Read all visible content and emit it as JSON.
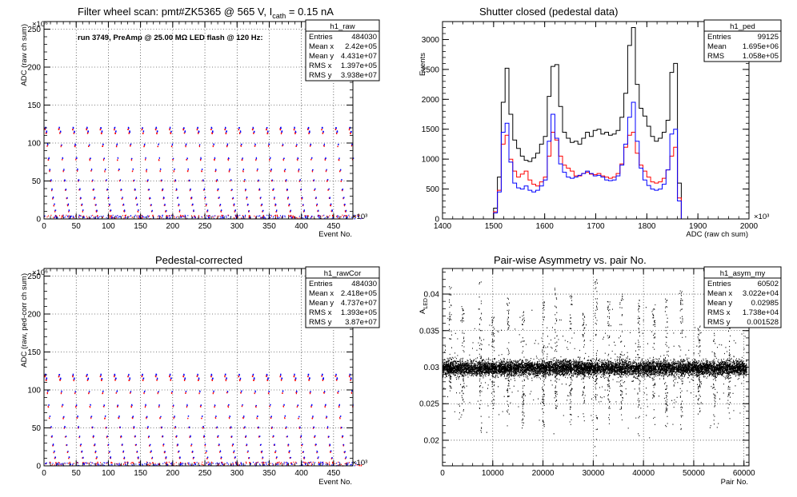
{
  "chart_data": [
    {
      "type": "scatter",
      "id": "raw",
      "title": "Filter wheel scan: pmt#ZK5365 @   565 V, I",
      "title_sub": "cath",
      "title_tail": " = 0.15 nA",
      "annotation": "run 3749, PreAmp @ 25.00 MΩ LED flash @  120 Hz:",
      "xlabel": "Event No.",
      "ylabel": "ADC (raw ch sum)",
      "xlim": [
        0,
        480
      ],
      "ylim": [
        0,
        260
      ],
      "x_multiplier": "×10³",
      "y_multiplier": "×10⁶",
      "x_ticks": [
        0,
        50,
        100,
        150,
        200,
        250,
        300,
        350,
        400,
        450
      ],
      "y_ticks": [
        0,
        50,
        100,
        150,
        200,
        250
      ],
      "grid": true,
      "stats_box": {
        "name": "h1_raw",
        "rows": [
          [
            "Entries",
            "484030"
          ],
          [
            "Mean x",
            "2.42e+05"
          ],
          [
            "Mean y",
            "4.431e+07"
          ],
          [
            "RMS x",
            "1.397e+05"
          ],
          [
            "RMS y",
            "3.938e+07"
          ]
        ]
      },
      "series": [
        {
          "color": "#ff0000",
          "levels": [
            118,
            113,
            96,
            78,
            63,
            50,
            38,
            27,
            18,
            10,
            4
          ]
        },
        {
          "color": "#0000ff",
          "levels": [
            120,
            115,
            98,
            80,
            65,
            51,
            39,
            28,
            19,
            11,
            2
          ]
        }
      ],
      "period": 21.5
    },
    {
      "type": "line",
      "id": "ped",
      "title": "Shutter closed (pedestal data)",
      "xlabel": "ADC (raw ch sum)",
      "ylabel": "Events",
      "xlim": [
        1400,
        2000
      ],
      "ylim": [
        0,
        3300
      ],
      "x_multiplier": "×10³",
      "x_ticks": [
        1400,
        1500,
        1600,
        1700,
        1800,
        1900,
        2000
      ],
      "y_ticks": [
        0,
        500,
        1000,
        1500,
        2000,
        2500,
        3000
      ],
      "grid": false,
      "stats_box": {
        "name": "h1_ped",
        "rows": [
          [
            "Entries",
            "99125"
          ],
          [
            "Mean",
            "1.695e+06"
          ],
          [
            "RMS",
            "1.058e+05"
          ]
        ]
      },
      "bin_width": 7.5,
      "series": [
        {
          "color": "#000000",
          "x": [
            1500,
            1507.5,
            1515,
            1522.5,
            1530,
            1537.5,
            1545,
            1552.5,
            1560,
            1567.5,
            1575,
            1582.5,
            1590,
            1597.5,
            1605,
            1612.5,
            1620,
            1627.5,
            1635,
            1642.5,
            1650,
            1657.5,
            1665,
            1672.5,
            1680,
            1687.5,
            1695,
            1702.5,
            1710,
            1717.5,
            1725,
            1732.5,
            1740,
            1747.5,
            1755,
            1762.5,
            1770,
            1777.5,
            1785,
            1792.5,
            1800,
            1807.5,
            1815,
            1822.5,
            1830,
            1837.5,
            1845,
            1852.5,
            1860
          ],
          "y": [
            180,
            700,
            1950,
            2520,
            1750,
            1320,
            1180,
            1050,
            980,
            960,
            1020,
            1100,
            1250,
            1380,
            2050,
            2550,
            2580,
            1880,
            1450,
            1350,
            1280,
            1300,
            1250,
            1350,
            1450,
            1380,
            1480,
            1500,
            1420,
            1450,
            1400,
            1420,
            1480,
            1700,
            2100,
            2900,
            3200,
            2250,
            1850,
            1720,
            1550,
            1380,
            1300,
            1350,
            1450,
            1650,
            2450,
            2600,
            600
          ]
        },
        {
          "color": "#ff0000",
          "x": [
            1500,
            1507.5,
            1515,
            1522.5,
            1530,
            1537.5,
            1545,
            1552.5,
            1560,
            1567.5,
            1575,
            1582.5,
            1590,
            1597.5,
            1605,
            1612.5,
            1620,
            1627.5,
            1635,
            1642.5,
            1650,
            1657.5,
            1665,
            1672.5,
            1680,
            1687.5,
            1695,
            1702.5,
            1710,
            1717.5,
            1725,
            1732.5,
            1740,
            1747.5,
            1755,
            1762.5,
            1770,
            1777.5,
            1785,
            1792.5,
            1800,
            1807.5,
            1815,
            1822.5,
            1830,
            1837.5,
            1845,
            1852.5,
            1860
          ],
          "y": [
            120,
            480,
            1250,
            1400,
            1000,
            800,
            700,
            750,
            800,
            650,
            580,
            550,
            620,
            700,
            1050,
            1450,
            1320,
            1050,
            900,
            850,
            800,
            720,
            720,
            760,
            780,
            750,
            740,
            760,
            720,
            700,
            680,
            700,
            760,
            920,
            1200,
            1400,
            1450,
            1100,
            900,
            800,
            700,
            620,
            600,
            620,
            680,
            820,
            1050,
            1200,
            350
          ]
        },
        {
          "color": "#0000ff",
          "x": [
            1500,
            1507.5,
            1515,
            1522.5,
            1530,
            1537.5,
            1545,
            1552.5,
            1560,
            1567.5,
            1575,
            1582.5,
            1590,
            1597.5,
            1605,
            1612.5,
            1620,
            1627.5,
            1635,
            1642.5,
            1650,
            1657.5,
            1665,
            1672.5,
            1680,
            1687.5,
            1695,
            1702.5,
            1710,
            1717.5,
            1725,
            1732.5,
            1740,
            1747.5,
            1755,
            1762.5,
            1770,
            1777.5,
            1785,
            1792.5,
            1800,
            1807.5,
            1815,
            1822.5,
            1830,
            1837.5,
            1845,
            1852.5,
            1860
          ],
          "y": [
            100,
            450,
            1450,
            1600,
            950,
            600,
            520,
            500,
            550,
            480,
            450,
            480,
            550,
            650,
            1300,
            1750,
            1350,
            920,
            780,
            700,
            680,
            700,
            730,
            760,
            800,
            760,
            720,
            730,
            700,
            650,
            640,
            650,
            720,
            900,
            1250,
            1700,
            1950,
            1300,
            850,
            650,
            560,
            500,
            480,
            500,
            580,
            820,
            1420,
            1500,
            300
          ]
        }
      ]
    },
    {
      "type": "scatter",
      "id": "rawCor",
      "title": "Pedestal-corrected",
      "xlabel": "Event No.",
      "ylabel": "ADC (raw, ped-corr ch sum)",
      "xlim": [
        0,
        480
      ],
      "ylim": [
        0,
        260
      ],
      "x_multiplier": "×10³",
      "y_multiplier": "×10⁶",
      "x_ticks": [
        0,
        50,
        100,
        150,
        200,
        250,
        300,
        350,
        400,
        450
      ],
      "y_ticks": [
        0,
        50,
        100,
        150,
        200,
        250
      ],
      "grid": true,
      "stats_box": {
        "name": "h1_rawCor",
        "rows": [
          [
            "Entries",
            "484030"
          ],
          [
            "Mean x",
            "2.418e+05"
          ],
          [
            "Mean y",
            "4.737e+07"
          ],
          [
            "RMS x",
            "1.393e+05"
          ],
          [
            "RMS y",
            "3.87e+07"
          ]
        ]
      },
      "series": [
        {
          "color": "#ff0000",
          "levels": [
            118,
            113,
            96,
            78,
            63,
            50,
            38,
            27,
            18,
            10,
            4
          ]
        },
        {
          "color": "#0000ff",
          "levels": [
            120,
            115,
            98,
            80,
            65,
            51,
            39,
            28,
            19,
            11,
            2
          ]
        }
      ],
      "period": 21.5
    },
    {
      "type": "scatter",
      "id": "asym",
      "title": "Pair-wise Asymmetry vs. pair No.",
      "xlabel": "Pair No.",
      "ylabel": "A",
      "ylabel_sub": "LED",
      "xlim": [
        0,
        61000
      ],
      "ylim": [
        0.0165,
        0.0435
      ],
      "x_ticks": [
        0,
        10000,
        20000,
        30000,
        40000,
        50000,
        60000
      ],
      "y_ticks": [
        0.02,
        0.025,
        0.03,
        0.035,
        0.04
      ],
      "y_tick_labels": [
        "0.02",
        "0.025",
        "0.03",
        "0.035",
        "0.04"
      ],
      "grid": true,
      "stats_box": {
        "name": "h1_asym_my",
        "rows": [
          [
            "Entries",
            "60502"
          ],
          [
            "Mean x",
            "3.022e+04"
          ],
          [
            "Mean y",
            "0.02985"
          ],
          [
            "RMS x",
            "1.738e+04"
          ],
          [
            "RMS y",
            "0.001528"
          ]
        ]
      },
      "n_points": 60502,
      "mean_y": 0.02985,
      "band_halfwidth": 0.0009,
      "spikes": [
        {
          "x": 1500,
          "min": 0.0258,
          "max": 0.0415
        },
        {
          "x": 4000,
          "min": 0.0225,
          "max": 0.0385
        },
        {
          "x": 7500,
          "min": 0.0205,
          "max": 0.042
        },
        {
          "x": 10000,
          "min": 0.0236,
          "max": 0.037
        },
        {
          "x": 13000,
          "min": 0.0195,
          "max": 0.0395
        },
        {
          "x": 16000,
          "min": 0.02,
          "max": 0.0385
        },
        {
          "x": 20000,
          "min": 0.021,
          "max": 0.039
        },
        {
          "x": 22500,
          "min": 0.0235,
          "max": 0.041
        },
        {
          "x": 25500,
          "min": 0.0205,
          "max": 0.04
        },
        {
          "x": 28000,
          "min": 0.023,
          "max": 0.0375
        },
        {
          "x": 30500,
          "min": 0.017,
          "max": 0.042
        },
        {
          "x": 33000,
          "min": 0.0215,
          "max": 0.039
        },
        {
          "x": 35500,
          "min": 0.0225,
          "max": 0.04
        },
        {
          "x": 39000,
          "min": 0.02,
          "max": 0.0395
        },
        {
          "x": 42000,
          "min": 0.021,
          "max": 0.038
        },
        {
          "x": 44500,
          "min": 0.0215,
          "max": 0.0395
        },
        {
          "x": 47500,
          "min": 0.0205,
          "max": 0.0405
        },
        {
          "x": 51000,
          "min": 0.023,
          "max": 0.036
        },
        {
          "x": 54000,
          "min": 0.0215,
          "max": 0.04
        },
        {
          "x": 57000,
          "min": 0.0225,
          "max": 0.04
        }
      ]
    }
  ]
}
